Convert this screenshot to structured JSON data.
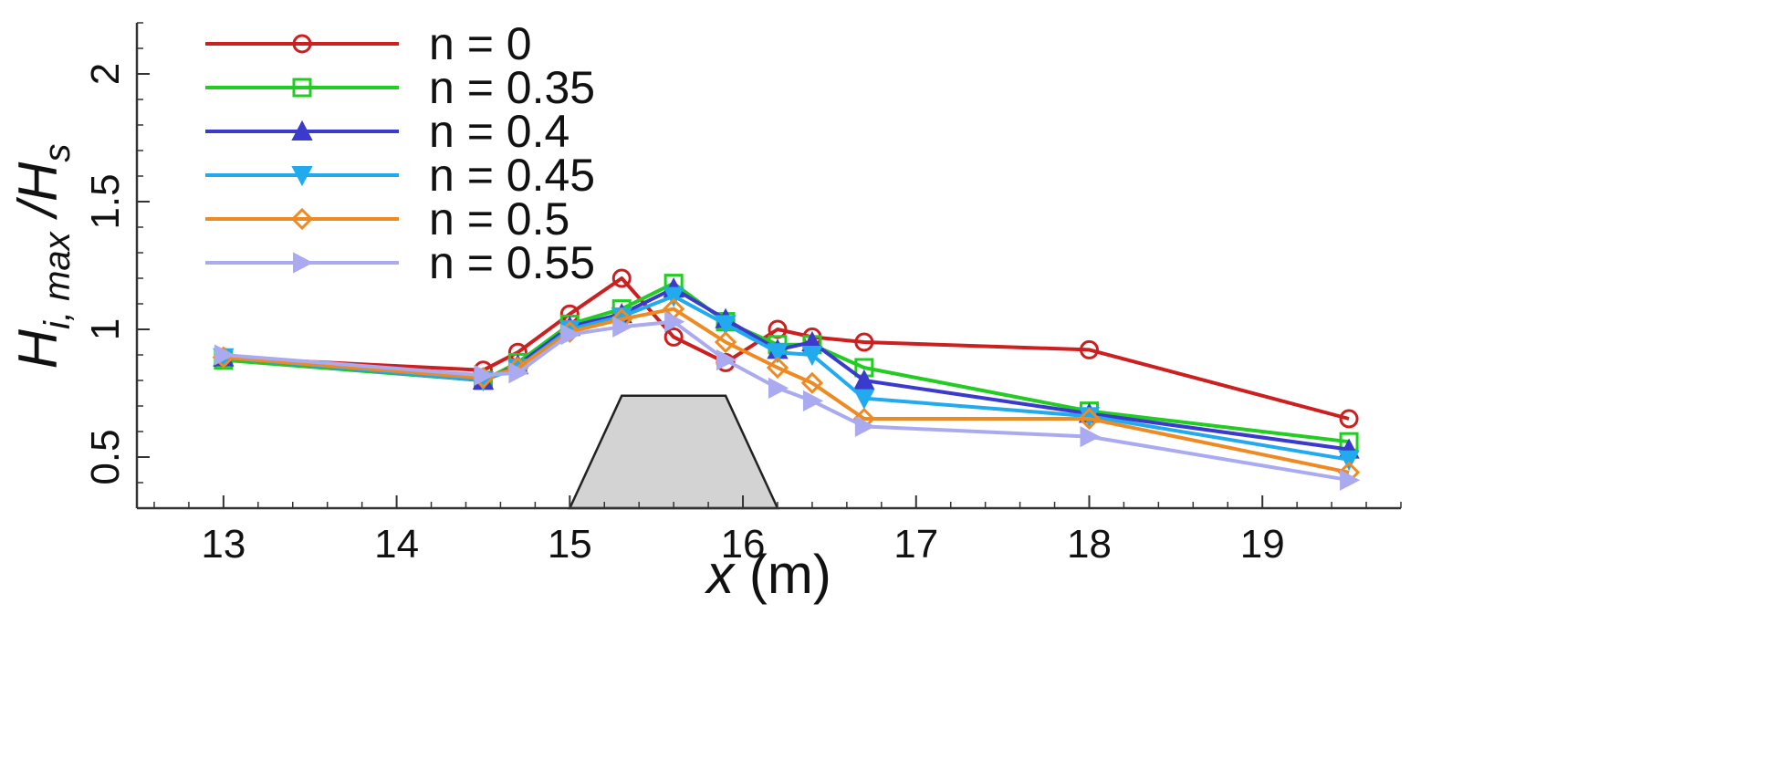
{
  "chart_data": {
    "type": "line",
    "xlabel": "x (m)",
    "ylabel": {
      "main": "H",
      "sub": "i, max",
      "slash": " /H",
      "sub2": "s"
    },
    "xlim": [
      12.5,
      19.8
    ],
    "ylim": [
      0.3,
      2.2
    ],
    "xticks": [
      13,
      14,
      15,
      16,
      17,
      18,
      19
    ],
    "yticks": [
      0.5,
      1,
      1.5,
      2
    ],
    "ytick_labels": [
      "0.5",
      "1",
      "1.5",
      "2"
    ],
    "grid": false,
    "legend_position": "top-left",
    "structure": {
      "label": "",
      "points": [
        [
          15.0,
          0.3
        ],
        [
          15.3,
          0.74
        ],
        [
          15.9,
          0.74
        ],
        [
          16.2,
          0.3
        ]
      ],
      "color": "#d3d3d3"
    },
    "series": [
      {
        "name": "n = 0",
        "color": "#cc1f1f",
        "marker": "circle",
        "x": [
          13,
          14.5,
          14.7,
          15,
          15.3,
          15.6,
          15.9,
          16.2,
          16.4,
          16.7,
          18,
          19.5
        ],
        "y": [
          0.89,
          0.84,
          0.91,
          1.06,
          1.2,
          0.97,
          0.87,
          1.0,
          0.97,
          0.95,
          0.92,
          0.65
        ]
      },
      {
        "name": "n = 0.35",
        "color": "#22cc22",
        "marker": "square",
        "x": [
          13,
          14.5,
          14.7,
          15,
          15.3,
          15.6,
          15.9,
          16.2,
          16.4,
          16.7,
          18,
          19.5
        ],
        "y": [
          0.88,
          0.8,
          0.87,
          1.02,
          1.08,
          1.18,
          1.03,
          0.94,
          0.94,
          0.85,
          0.68,
          0.56
        ]
      },
      {
        "name": "n = 0.4",
        "color": "#3a3acc",
        "marker": "triangle-up",
        "x": [
          13,
          14.5,
          14.7,
          15,
          15.3,
          15.6,
          15.9,
          16.2,
          16.4,
          16.7,
          18,
          19.5
        ],
        "y": [
          0.89,
          0.8,
          0.86,
          1.01,
          1.06,
          1.16,
          1.04,
          0.92,
          0.95,
          0.8,
          0.67,
          0.53
        ]
      },
      {
        "name": "n = 0.45",
        "color": "#22aaee",
        "marker": "triangle-down",
        "x": [
          13,
          14.5,
          14.7,
          15,
          15.3,
          15.6,
          15.9,
          16.2,
          16.4,
          16.7,
          18,
          19.5
        ],
        "y": [
          0.89,
          0.8,
          0.85,
          1.0,
          1.05,
          1.13,
          1.02,
          0.91,
          0.9,
          0.73,
          0.66,
          0.49
        ]
      },
      {
        "name": "n = 0.5",
        "color": "#ee8a22",
        "marker": "diamond",
        "x": [
          13,
          14.5,
          14.7,
          15,
          15.3,
          15.6,
          15.9,
          16.2,
          16.4,
          16.7,
          18,
          19.5
        ],
        "y": [
          0.89,
          0.81,
          0.85,
          0.99,
          1.04,
          1.08,
          0.95,
          0.85,
          0.79,
          0.65,
          0.65,
          0.44
        ]
      },
      {
        "name": "n = 0.55",
        "color": "#aaaaf0",
        "marker": "triangle-right",
        "x": [
          13,
          14.5,
          14.7,
          15,
          15.3,
          15.6,
          15.9,
          16.2,
          16.4,
          16.7,
          18,
          19.5
        ],
        "y": [
          0.9,
          0.82,
          0.83,
          0.98,
          1.01,
          1.03,
          0.88,
          0.77,
          0.72,
          0.62,
          0.58,
          0.41
        ]
      }
    ]
  }
}
